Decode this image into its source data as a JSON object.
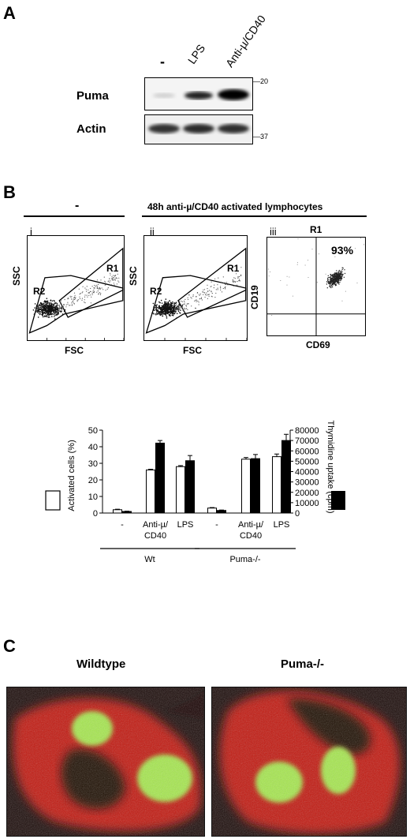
{
  "panels": {
    "a": "A",
    "b": "B",
    "c": "C"
  },
  "blot": {
    "lanes": [
      "-",
      "LPS",
      "Anti-µ/CD40"
    ],
    "rows": [
      {
        "label": "Puma",
        "marker": "20"
      },
      {
        "label": "Actin",
        "marker": "37"
      }
    ]
  },
  "flow": {
    "group_left": "-",
    "group_right": "48h anti-µ/CD40 activated lymphocytes",
    "plots": [
      {
        "roman": "i",
        "xlabel": "FSC",
        "ylabel": "SSC",
        "gate1": "R1",
        "gate2": "R2"
      },
      {
        "roman": "ii",
        "xlabel": "FSC",
        "ylabel": "SSC",
        "gate1": "R1",
        "gate2": "R2"
      },
      {
        "roman": "iii",
        "xlabel": "CD69",
        "ylabel": "CD19",
        "gate": "R1",
        "percent": "93%"
      }
    ]
  },
  "chart_data": {
    "type": "bar",
    "y_left_label": "Activated cells (%)",
    "y_right_label": "Thymidine uptake (cpm)",
    "ylim_left": [
      0,
      50
    ],
    "ylim_right": [
      0,
      80000
    ],
    "left_ticks": [
      "0",
      "10",
      "20",
      "30",
      "40",
      "50"
    ],
    "right_ticks": [
      "0",
      "10000",
      "20000",
      "30000",
      "40000",
      "50000",
      "60000",
      "70000",
      "80000"
    ],
    "categories": [
      "-",
      "Anti-µ/\nCD40",
      "LPS",
      "-",
      "Anti-µ/\nCD40",
      "LPS"
    ],
    "category_lines": [
      [
        "-"
      ],
      [
        "Anti-µ/",
        "CD40"
      ],
      [
        "LPS"
      ],
      [
        "-"
      ],
      [
        "Anti-µ/",
        "CD40"
      ],
      [
        "LPS"
      ]
    ],
    "groups": [
      {
        "label": "Wt",
        "categories": [
          0,
          1,
          2
        ]
      },
      {
        "label": "Puma-/-",
        "categories": [
          3,
          4,
          5
        ]
      }
    ],
    "series": [
      {
        "name": "Activated cells (%)",
        "axis": "left",
        "color": "#ffffff",
        "values": [
          2,
          26,
          28,
          3,
          32.5,
          34
        ],
        "errors": [
          0.3,
          0.4,
          0.6,
          0.3,
          1,
          1.6
        ]
      },
      {
        "name": "Thymidine uptake (cpm)",
        "axis": "right",
        "color": "#000000",
        "values": [
          1500,
          67500,
          50500,
          2500,
          52500,
          70000
        ],
        "errors": [
          300,
          2500,
          5000,
          400,
          4000,
          6000
        ]
      }
    ]
  },
  "micrographs": {
    "left_label": "Wildtype",
    "right_label": "Puma-/-",
    "colors": {
      "background": "#1a0a08",
      "stain_red": "#d01a10",
      "stain_green": "#9ee84a"
    }
  }
}
